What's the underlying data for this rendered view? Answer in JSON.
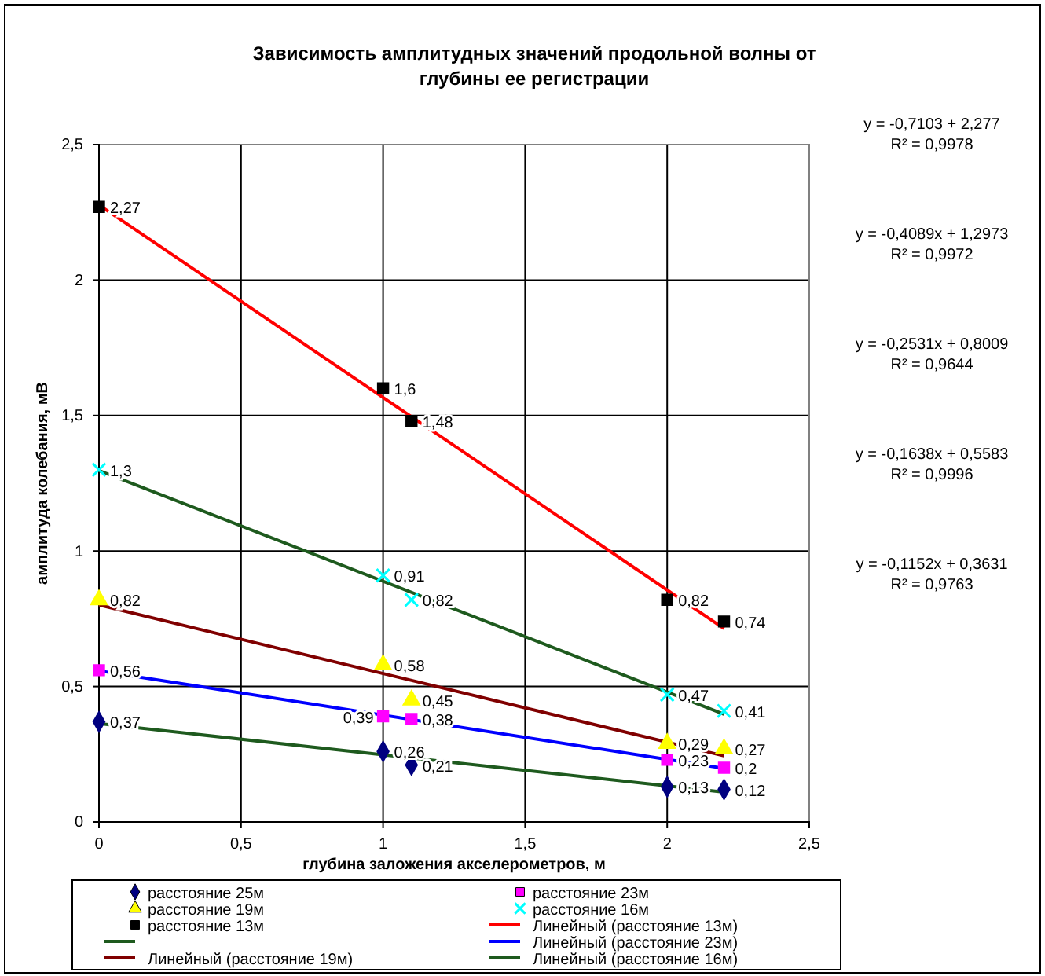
{
  "chart_data": {
    "type": "scatter",
    "title": "Зависимость амплитудных значений продольной волны от глубины ее  регистрации",
    "xlabel": "глубина заложения акселерометров, м",
    "ylabel": "амплитуда колебания, мВ",
    "xlim": [
      0,
      2.5
    ],
    "xticks": [
      {
        "value": 0,
        "label": "0"
      },
      {
        "value": 0.5,
        "label": "0,5"
      },
      {
        "value": 1,
        "label": "1"
      },
      {
        "value": 1.5,
        "label": "1,5"
      },
      {
        "value": 2,
        "label": "2"
      },
      {
        "value": 2.5,
        "label": "2,5"
      }
    ],
    "ylim": [
      0,
      2.5
    ],
    "yticks": [
      {
        "value": 0,
        "label": "0"
      },
      {
        "value": 0.5,
        "label": "0,5"
      },
      {
        "value": 1,
        "label": "1"
      },
      {
        "value": 1.5,
        "label": "1,5"
      },
      {
        "value": 2,
        "label": "2"
      },
      {
        "value": 2.5,
        "label": "2,5"
      }
    ],
    "grid": true,
    "legend": "bottom",
    "series": [
      {
        "name": "расстояние 25м",
        "type": "scatter",
        "marker": "diamond",
        "color": "#000080",
        "x": [
          0,
          1,
          1.1,
          2,
          2.2
        ],
        "values": [
          0.37,
          0.26,
          0.21,
          0.13,
          0.12
        ],
        "value_labels": [
          "0,37",
          "0,26",
          "0,21",
          "0,13",
          "0,12"
        ]
      },
      {
        "name": "расстояние 23м",
        "type": "scatter",
        "marker": "square",
        "color": "#ff00ff",
        "x": [
          0,
          1,
          1.1,
          2,
          2.2
        ],
        "values": [
          0.56,
          0.39,
          0.38,
          0.23,
          0.2
        ],
        "value_labels": [
          "0,56",
          "0,39",
          "0,38",
          "0,23",
          "0,2"
        ]
      },
      {
        "name": "расстояние 19м",
        "type": "scatter",
        "marker": "triangle",
        "color": "#ffff00",
        "x": [
          0,
          1,
          1.1,
          2,
          2.2
        ],
        "values": [
          0.82,
          0.58,
          0.45,
          0.29,
          0.27
        ],
        "value_labels": [
          "0,82",
          "0,58",
          "0,45",
          "0,29",
          "0,27"
        ]
      },
      {
        "name": "расстояние 16м",
        "type": "scatter",
        "marker": "cross",
        "color": "#00ffff",
        "x": [
          0,
          1,
          1.1,
          2,
          2.2
        ],
        "values": [
          1.3,
          0.91,
          0.82,
          0.47,
          0.41
        ],
        "value_labels": [
          "1,3",
          "0,91",
          "0,82",
          "0,47",
          "0,41"
        ]
      },
      {
        "name": "расстояние 13м",
        "type": "scatter",
        "marker": "square",
        "color": "#000000",
        "x": [
          0,
          1,
          1.1,
          2,
          2.2
        ],
        "values": [
          2.27,
          1.6,
          1.48,
          0.82,
          0.74
        ],
        "value_labels": [
          "2,27",
          "1,6",
          "1,48",
          "0,82",
          "0,74"
        ]
      },
      {
        "name": "Линейный (расстояние 13м)",
        "type": "line",
        "color": "#ff0000",
        "x": [
          0,
          2.2
        ],
        "values": [
          2.277,
          0.714
        ]
      },
      {
        "type": "line",
        "color": "#1e5a1e",
        "x": [
          0,
          2.2
        ],
        "values": [
          0.363,
          0.11
        ]
      },
      {
        "name": "Линейный (расстояние 23м)",
        "type": "line",
        "color": "#0000ff",
        "x": [
          0,
          2.2
        ],
        "values": [
          0.558,
          0.198
        ]
      },
      {
        "name": "Линейный (расстояние 19м)",
        "type": "line",
        "color": "#800000",
        "x": [
          0,
          2.2
        ],
        "values": [
          0.801,
          0.244
        ]
      },
      {
        "name": "Линейный (расстояние 16м)",
        "type": "line",
        "color": "#1e5a1e",
        "x": [
          0,
          2.2
        ],
        "values": [
          1.297,
          0.398
        ]
      }
    ],
    "annotations": [
      "y = -0,7103 + 2,277",
      "R² = 0,9978",
      "y = -0,4089x + 1,2973",
      "R² = 0,9972",
      "y = -0,2531x + 0,8009",
      "R² = 0,9644",
      "y = -0,1638x + 0,5583",
      "R² = 0,9996",
      "y = -0,1152x + 0,3631",
      "R² = 0,9763"
    ]
  }
}
